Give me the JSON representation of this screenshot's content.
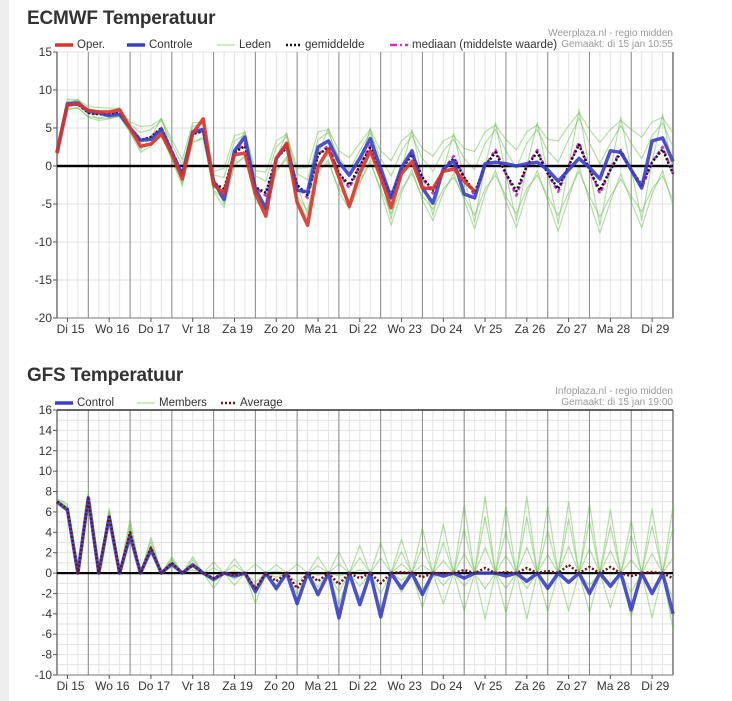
{
  "chart_data": [
    {
      "type": "line",
      "title": "ECMWF Temperatuur",
      "credits": [
        "Weerplaza.nl - regio midden",
        "Gemaakt: di 15 jan 10:55"
      ],
      "ylim": [
        -20,
        15
      ],
      "y_ticks": [
        15,
        10,
        5,
        0,
        -5,
        -10,
        -15,
        -20
      ],
      "y_grid_step": 5,
      "x_tick_labels": [
        "Di 15",
        "Wo 16",
        "Do 17",
        "Vr 18",
        "Za 19",
        "Zo 20",
        "Ma 21",
        "Di 22",
        "Wo 23",
        "Do 24",
        "Vr 25",
        "Za 26",
        "Zo 27",
        "Ma 28",
        "Di 29"
      ],
      "grid": true,
      "legend": "top-left",
      "members": {
        "name": "Leden",
        "color": "#5cb83c",
        "values": [
          [
            2.3,
            8.5,
            8.6,
            7.5,
            7.3,
            7.3,
            7.5,
            5.5,
            4.4,
            4.8,
            6,
            3,
            0,
            5.2,
            5.6,
            -1.2,
            -1.5,
            3.3,
            4.1,
            -1.3,
            -2,
            2.5,
            3.9,
            -1,
            -1.8,
            3.5,
            4.4,
            1,
            -0.5,
            2,
            4.4,
            1,
            -1.3,
            2,
            4,
            1,
            -0.7,
            2,
            3.5,
            1,
            -0.5,
            3,
            4.8,
            2,
            -0.3,
            3,
            4.8,
            2,
            0.5,
            3.5,
            6.3,
            3,
            0.3,
            3,
            5.3,
            3,
            1,
            4,
            5.7,
            2.5
          ],
          [
            1.3,
            7.5,
            7.6,
            6.5,
            6.3,
            6.3,
            6.5,
            4.5,
            2.4,
            2.8,
            4,
            1,
            -2,
            3.2,
            3.6,
            -3.2,
            -4.5,
            0.3,
            1.1,
            -4.3,
            -5,
            -0.5,
            0.9,
            -4,
            -5.8,
            -0.5,
            0.4,
            -3,
            -4.5,
            -2,
            0.4,
            -3,
            -6.3,
            -3,
            -1,
            -4,
            -5.7,
            -3,
            -1.5,
            -4,
            -6.5,
            -3,
            -1.2,
            -4,
            -6.3,
            -3,
            -1.2,
            -4,
            -6.5,
            -3.5,
            -0.7,
            -4,
            -6.7,
            -4,
            -1.7,
            -4,
            -6,
            -3,
            -1.3,
            -4.5
          ],
          [
            1.2,
            8,
            8.8,
            7,
            6.2,
            6.8,
            7.7,
            5,
            2.1,
            3.8,
            6.3,
            2,
            -2.3,
            4.2,
            5.9,
            -2.2,
            -5,
            1.8,
            4.6,
            -2.8,
            -5.5,
            1,
            4.4,
            -2.5,
            -6.4,
            1.5,
            5,
            -1,
            -5.1,
            0,
            5,
            -1,
            -7,
            -0.5,
            4.8,
            -1.5,
            -6.5,
            -0.5,
            4.3,
            -1.5,
            -7.4,
            0,
            5.7,
            -1,
            -7.2,
            0,
            5.7,
            -1,
            -7.6,
            0,
            7.4,
            -0.5,
            -7.8,
            -0.5,
            6.4,
            -0.5,
            -7.1,
            0.5,
            6.8,
            -1
          ],
          [
            2.7,
            8.8,
            8.7,
            7.8,
            7.7,
            7.6,
            7.6,
            5.8,
            5.2,
            5.3,
            6.2,
            3.5,
            0.8,
            5.7,
            5.8,
            -0.7,
            -0.3,
            4,
            4.4,
            -0.6,
            -0.8,
            3.3,
            4.2,
            -0.3,
            -0.2,
            4.5,
            4.8,
            2,
            1.1,
            3,
            4.8,
            2,
            0.7,
            3.3,
            4.5,
            2.3,
            1.3,
            3.3,
            4,
            2.3,
            1.9,
            4.5,
            5.4,
            3.5,
            2.1,
            4.5,
            5.4,
            3.5,
            3.3,
            5.3,
            7,
            4.8,
            3.1,
            4.8,
            6,
            4.8,
            3.8,
            5.8,
            6.4,
            4.3
          ],
          [
            1,
            7.4,
            7.7,
            6.4,
            6,
            6.2,
            6.6,
            4.4,
            1.8,
            2.6,
            4.2,
            0.8,
            -2.6,
            3,
            3.8,
            -3.4,
            -5.4,
            0,
            1.4,
            -4.6,
            -5.9,
            -0.8,
            1.2,
            -4.3,
            -7,
            -0.9,
            0.8,
            -3.4,
            -5.7,
            -2.4,
            0.8,
            -3.4,
            -7.8,
            -3.5,
            -0.5,
            -4.5,
            -7.2,
            -3.5,
            -1,
            -4.5,
            -8.3,
            -3.6,
            -0.6,
            -4.6,
            -8.1,
            -3.6,
            -0.6,
            -4.6,
            -8.6,
            -4.2,
            0,
            -4.7,
            -8.8,
            -4.7,
            -1,
            -4.7,
            -8.1,
            -3.7,
            -0.6,
            -5.2
          ]
        ]
      },
      "series": [
        {
          "name": "Oper.",
          "color": "#d9342b",
          "style": "solid",
          "values": [
            1.7,
            8,
            8.2,
            7.3,
            7.1,
            7.1,
            7.4,
            5,
            2.6,
            2.9,
            4.2,
            1.6,
            -1.7,
            4.3,
            6.2,
            -2.5,
            -3.6,
            1.5,
            1.7,
            -3.6,
            -6.6,
            1,
            3,
            -4.8,
            -7.8,
            -0.1,
            2.2,
            -1.5,
            -5.3,
            -1,
            2,
            -1.5,
            -5.5,
            -1,
            0.6,
            -2.9,
            -3,
            -0.7,
            -0.4,
            -2,
            -3.3
          ]
        },
        {
          "name": "Controle",
          "color": "#3a3fc6",
          "style": "solid",
          "values": [
            1.8,
            8.2,
            8.3,
            7.2,
            7,
            6.6,
            6.8,
            5,
            3.4,
            3.5,
            4.8,
            1.8,
            -1.2,
            4.5,
            4.8,
            -2,
            -4.4,
            2,
            3.8,
            -3,
            -5.6,
            1,
            2.8,
            -3.2,
            -3.4,
            2.5,
            3.3,
            0.5,
            -1.2,
            1,
            3.6,
            -0.3,
            -4.2,
            -0.2,
            2,
            -2.9,
            -4.9,
            -0.4,
            0.7,
            -3.7,
            -4.2,
            0.3,
            0.5,
            0.3,
            0,
            0.3,
            0.5,
            -0.5,
            -2,
            -0.5,
            1,
            -0.2,
            -1.7,
            2,
            1.8,
            -0.5,
            -2.9,
            3.3,
            3.7,
            0.6
          ]
        },
        {
          "name": "gemiddelde",
          "color": "#111111",
          "style": "dotted",
          "values": [
            1.8,
            8,
            8.1,
            7,
            6.8,
            6.8,
            7,
            5,
            3.4,
            3.8,
            5,
            2,
            -1,
            4.2,
            4.6,
            -2.2,
            -3,
            1.8,
            2.6,
            -2.8,
            -3.5,
            1,
            2.4,
            -2.5,
            -3.8,
            1.5,
            2.4,
            -1,
            -2.5,
            0,
            2.4,
            -1,
            -3.8,
            -0.5,
            1.5,
            -1.5,
            -3.2,
            -0.5,
            1,
            -1.5,
            -3.5,
            0,
            1.8,
            -1,
            -3.3,
            0,
            1.8,
            -1,
            -3,
            0,
            2.8,
            -0.5,
            -3.2,
            -0.5,
            1.8,
            -0.5,
            -2.5,
            0.5,
            2.2,
            -1
          ]
        },
        {
          "name": "mediaan (middelste waarde)",
          "color": "#cc33cc",
          "style": "dashed",
          "values": [
            1.8,
            8,
            8.1,
            7,
            6.8,
            6.8,
            7,
            5,
            3.4,
            3.8,
            5,
            2,
            -1,
            4.2,
            4.6,
            -2.2,
            -3.4,
            1.8,
            2.9,
            -2.8,
            -3.9,
            1,
            2.7,
            -2.5,
            -4.2,
            1.5,
            2.7,
            -1,
            -2.9,
            0,
            2.7,
            -1,
            -4.2,
            -0.5,
            1.8,
            -1.5,
            -3.6,
            -0.5,
            1.3,
            -1.5,
            -3.9,
            0,
            2.1,
            -1,
            -3.9,
            0,
            2.1,
            -1,
            -3.4,
            0,
            3.1,
            -0.5,
            -3.6,
            -0.5,
            2.1,
            -0.5,
            -2.9,
            0.5,
            2.5,
            -1
          ]
        }
      ],
      "draw_order": [
        3,
        2,
        1,
        0
      ]
    },
    {
      "type": "line",
      "title": "GFS Temperatuur",
      "credits": [
        "Infoplaza.nl - regio midden",
        "Gemaakt: di 15 jan 19:00"
      ],
      "ylim": [
        -10,
        16
      ],
      "y_ticks": [
        16,
        14,
        12,
        10,
        8,
        6,
        4,
        2,
        0,
        -2,
        -4,
        -6,
        -8,
        -10
      ],
      "y_grid_step": 1,
      "x_tick_labels": [
        "Di 15",
        "Wo 16",
        "Do 17",
        "Vr 18",
        "Za 19",
        "Zo 20",
        "Ma 21",
        "Di 22",
        "Wo 23",
        "Do 24",
        "Vr 25",
        "Za 26",
        "Zo 27",
        "Ma 28",
        "Di 29"
      ],
      "grid": true,
      "legend": "top-left",
      "members": {
        "name": "Members",
        "color": "#5cb83c",
        "values": [
          [
            7.2,
            6.6,
            0,
            7.6,
            0,
            6.1,
            0,
            4.8,
            0,
            3.1,
            0,
            1.4,
            0,
            1.3,
            0,
            0.5,
            0,
            0.8,
            0,
            0,
            0,
            0.2,
            0,
            0,
            0,
            0.7,
            0,
            0.9,
            0,
            1.5,
            0,
            1.5,
            0,
            2.1,
            0,
            2.6,
            0,
            3,
            0,
            4.3,
            0,
            5.5,
            0,
            4.1,
            0,
            5.5,
            0,
            4.2,
            0,
            5.3,
            0,
            5.1,
            0,
            4.6,
            0,
            3.7,
            0,
            4.6,
            0,
            4.5
          ],
          [
            7.1,
            6.4,
            0,
            7.4,
            0,
            5.9,
            0,
            4.3,
            0,
            2.7,
            0,
            1.2,
            0,
            1.0,
            0,
            -0.1,
            0,
            0.2,
            0,
            -0.9,
            0,
            -0.4,
            0,
            -0.9,
            0,
            -0.2,
            0,
            -0.3,
            0,
            0.3,
            0,
            0,
            0,
            0.9,
            0,
            0.8,
            0,
            1.2,
            0,
            1.9,
            0,
            2.5,
            0,
            1.7,
            0,
            2.5,
            0,
            1.8,
            0,
            2.6,
            0,
            2.4,
            0,
            2.2,
            0,
            1.3,
            0,
            1.9,
            0,
            1.5
          ],
          [
            6.9,
            6.2,
            0,
            7.2,
            0,
            5.5,
            0,
            3.7,
            0,
            2.3,
            0,
            0.8,
            0,
            0.6,
            0,
            -0.9,
            0,
            -0.6,
            0,
            -2.1,
            0,
            -1.2,
            0,
            -2.1,
            0,
            -1.4,
            0,
            -1.9,
            0,
            -1.3,
            0,
            -2,
            0,
            -0.7,
            0,
            -1.6,
            0,
            -1.2,
            0,
            -1.3,
            0,
            -1.5,
            0,
            -1.5,
            0,
            -1.5,
            0,
            -1.4,
            0,
            -1,
            0,
            -1.2,
            0,
            -1,
            0,
            -1.9,
            0,
            -1.7,
            0,
            -2.5
          ],
          [
            6.8,
            6.0,
            0,
            7.0,
            0,
            5.3,
            0,
            3.2,
            0,
            1.9,
            0,
            0.6,
            0,
            0.3,
            0,
            -1.5,
            0,
            -1.2,
            0,
            -3,
            0,
            -1.8,
            0,
            -3,
            0,
            -2.3,
            0,
            -3.1,
            0,
            -2.5,
            0,
            -3.5,
            0,
            -1.9,
            0,
            -3.4,
            0,
            -3,
            0,
            -3.7,
            0,
            -4.5,
            0,
            -3.9,
            0,
            -4.5,
            0,
            -3.8,
            0,
            -3.7,
            0,
            -3.9,
            0,
            -3.4,
            0,
            -4.3,
            0,
            -4.4,
            0,
            -5.5
          ],
          [
            7.3,
            6.8,
            0,
            7.8,
            0,
            6.3,
            0,
            5.3,
            0,
            3.5,
            0,
            1.6,
            0,
            1.6,
            0,
            1.1,
            0,
            1.4,
            0,
            0.9,
            0,
            0.8,
            0,
            0.9,
            0,
            1.6,
            0,
            2.1,
            0,
            2.7,
            0,
            3,
            0,
            3.3,
            0,
            4.4,
            0,
            4.8,
            0,
            6.7,
            0,
            7.5,
            0,
            6.5,
            0,
            7.5,
            0,
            6.6,
            0,
            7,
            0,
            6.8,
            0,
            6.2,
            0,
            5.2,
            0,
            6.3,
            0,
            6.5
          ]
        ]
      },
      "series": [
        {
          "name": "Control",
          "color": "#3a3fc6",
          "style": "solid",
          "values": [
            7,
            6.2,
            0,
            7.4,
            0,
            5.5,
            0,
            3.7,
            0,
            2.3,
            0,
            0.9,
            0,
            0.8,
            0,
            -0.6,
            0,
            -0.3,
            0,
            -1.8,
            0,
            -1.5,
            0,
            -3,
            0,
            -2.1,
            0,
            -4.4,
            0,
            -3.1,
            0,
            -4.3,
            0,
            -1.5,
            0,
            -2.1,
            0,
            -0.3,
            0,
            -0.5,
            0,
            0,
            0,
            -0.3,
            0,
            -0.8,
            0,
            -1.5,
            0,
            -0.9,
            0,
            -2,
            0,
            -1.3,
            0,
            -3.6,
            0,
            -2,
            0,
            -4
          ]
        },
        {
          "name": "Average",
          "color": "#6b1212",
          "style": "dotted",
          "values": [
            7,
            6.3,
            0,
            7.3,
            0,
            5.7,
            0,
            4.0,
            0,
            2.5,
            0,
            1.0,
            0,
            0.8,
            0,
            -0.5,
            0,
            -0.2,
            0,
            -1.5,
            0,
            -0.8,
            0,
            -1.5,
            0,
            -0.8,
            0,
            -1.1,
            0,
            -0.5,
            0,
            -1,
            0,
            0.1,
            0,
            -0.4,
            0,
            0,
            0,
            0.3,
            0,
            0.5,
            0,
            0.1,
            0,
            0.5,
            0,
            0.2,
            0,
            0.8,
            0,
            0.6,
            0,
            0.6,
            0,
            -0.3,
            0,
            0.1,
            0,
            -0.5
          ]
        }
      ],
      "draw_order": [
        0,
        1
      ]
    }
  ]
}
